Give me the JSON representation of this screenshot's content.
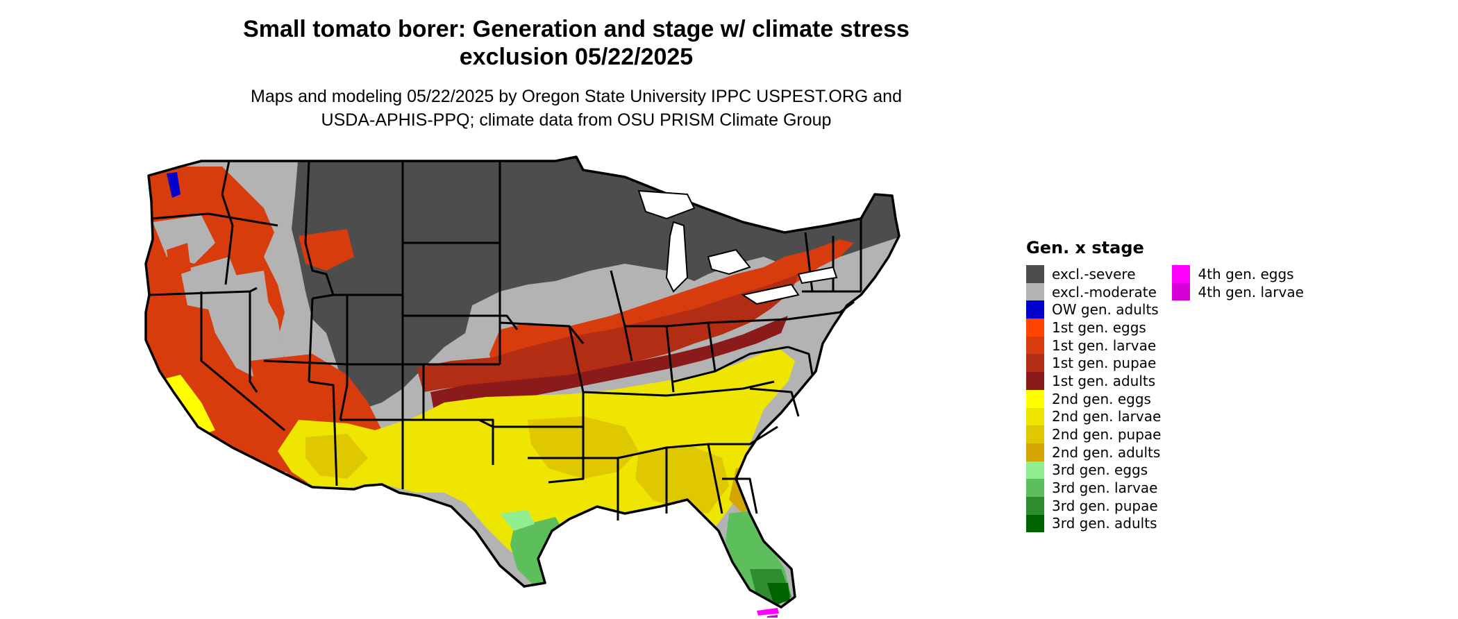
{
  "title": {
    "line1": "Small tomato borer: Generation and stage w/ climate stress",
    "line2": "exclusion 05/22/2025"
  },
  "subtitle": {
    "line1": "Maps and modeling 05/22/2025 by Oregon State University IPPC USPEST.ORG and",
    "line2": "USDA-APHIS-PPQ; climate data from OSU PRISM Climate Group"
  },
  "legend": {
    "title": "Gen. x stage",
    "columns": [
      [
        {
          "label": "excl.-severe",
          "color": "#4d4d4d"
        },
        {
          "label": "excl.-moderate",
          "color": "#b3b3b3"
        },
        {
          "label": "OW gen. adults",
          "color": "#0000cd"
        },
        {
          "label": "1st gen. eggs",
          "color": "#ff4500"
        },
        {
          "label": "1st gen. larvae",
          "color": "#d83b0c"
        },
        {
          "label": "1st gen. pupae",
          "color": "#b22d14"
        },
        {
          "label": "1st gen. adults",
          "color": "#8b1a1a"
        },
        {
          "label": "2nd gen. eggs",
          "color": "#ffff00"
        },
        {
          "label": "2nd gen. larvae",
          "color": "#eee600"
        },
        {
          "label": "2nd gen. pupae",
          "color": "#dfc800"
        },
        {
          "label": "2nd gen. adults",
          "color": "#d4a500"
        },
        {
          "label": "3rd gen. eggs",
          "color": "#90ee90"
        },
        {
          "label": "3rd gen. larvae",
          "color": "#5cbf5c"
        },
        {
          "label": "3rd gen. pupae",
          "color": "#2e8b2e"
        },
        {
          "label": "3rd gen. adults",
          "color": "#006400"
        }
      ],
      [
        {
          "label": "4th gen. eggs",
          "color": "#ff00ff"
        },
        {
          "label": "4th gen. larvae",
          "color": "#d600d6"
        }
      ]
    ]
  }
}
